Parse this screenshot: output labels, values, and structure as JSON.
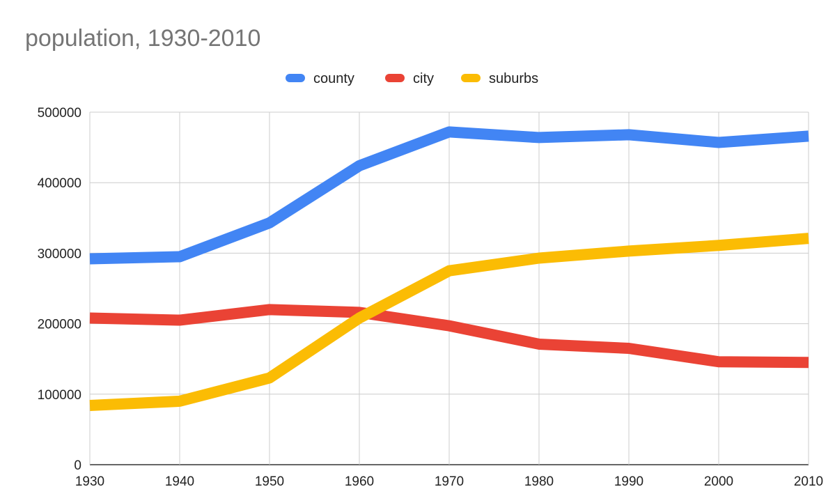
{
  "chart_data": {
    "type": "line",
    "title": "population, 1930-2010",
    "xlabel": "",
    "ylabel": "",
    "x": [
      "1930",
      "1940",
      "1950",
      "1960",
      "1970",
      "1980",
      "1990",
      "2000",
      "2010"
    ],
    "ylim": [
      0,
      500000
    ],
    "yticks": [
      "0",
      "100000",
      "200000",
      "300000",
      "400000",
      "500000"
    ],
    "grid": true,
    "legend_position": "top-center",
    "series": [
      {
        "name": "county",
        "color": "#4285F4",
        "values": [
          292000,
          295000,
          343000,
          424000,
          472000,
          464000,
          468000,
          457000,
          466000
        ]
      },
      {
        "name": "city",
        "color": "#EA4335",
        "values": [
          208000,
          205000,
          220000,
          216000,
          197000,
          171000,
          165000,
          146000,
          145000
        ]
      },
      {
        "name": "suburbs",
        "color": "#FBBC04",
        "values": [
          84000,
          90000,
          123000,
          208000,
          275000,
          293000,
          303000,
          311000,
          321000
        ]
      }
    ]
  }
}
